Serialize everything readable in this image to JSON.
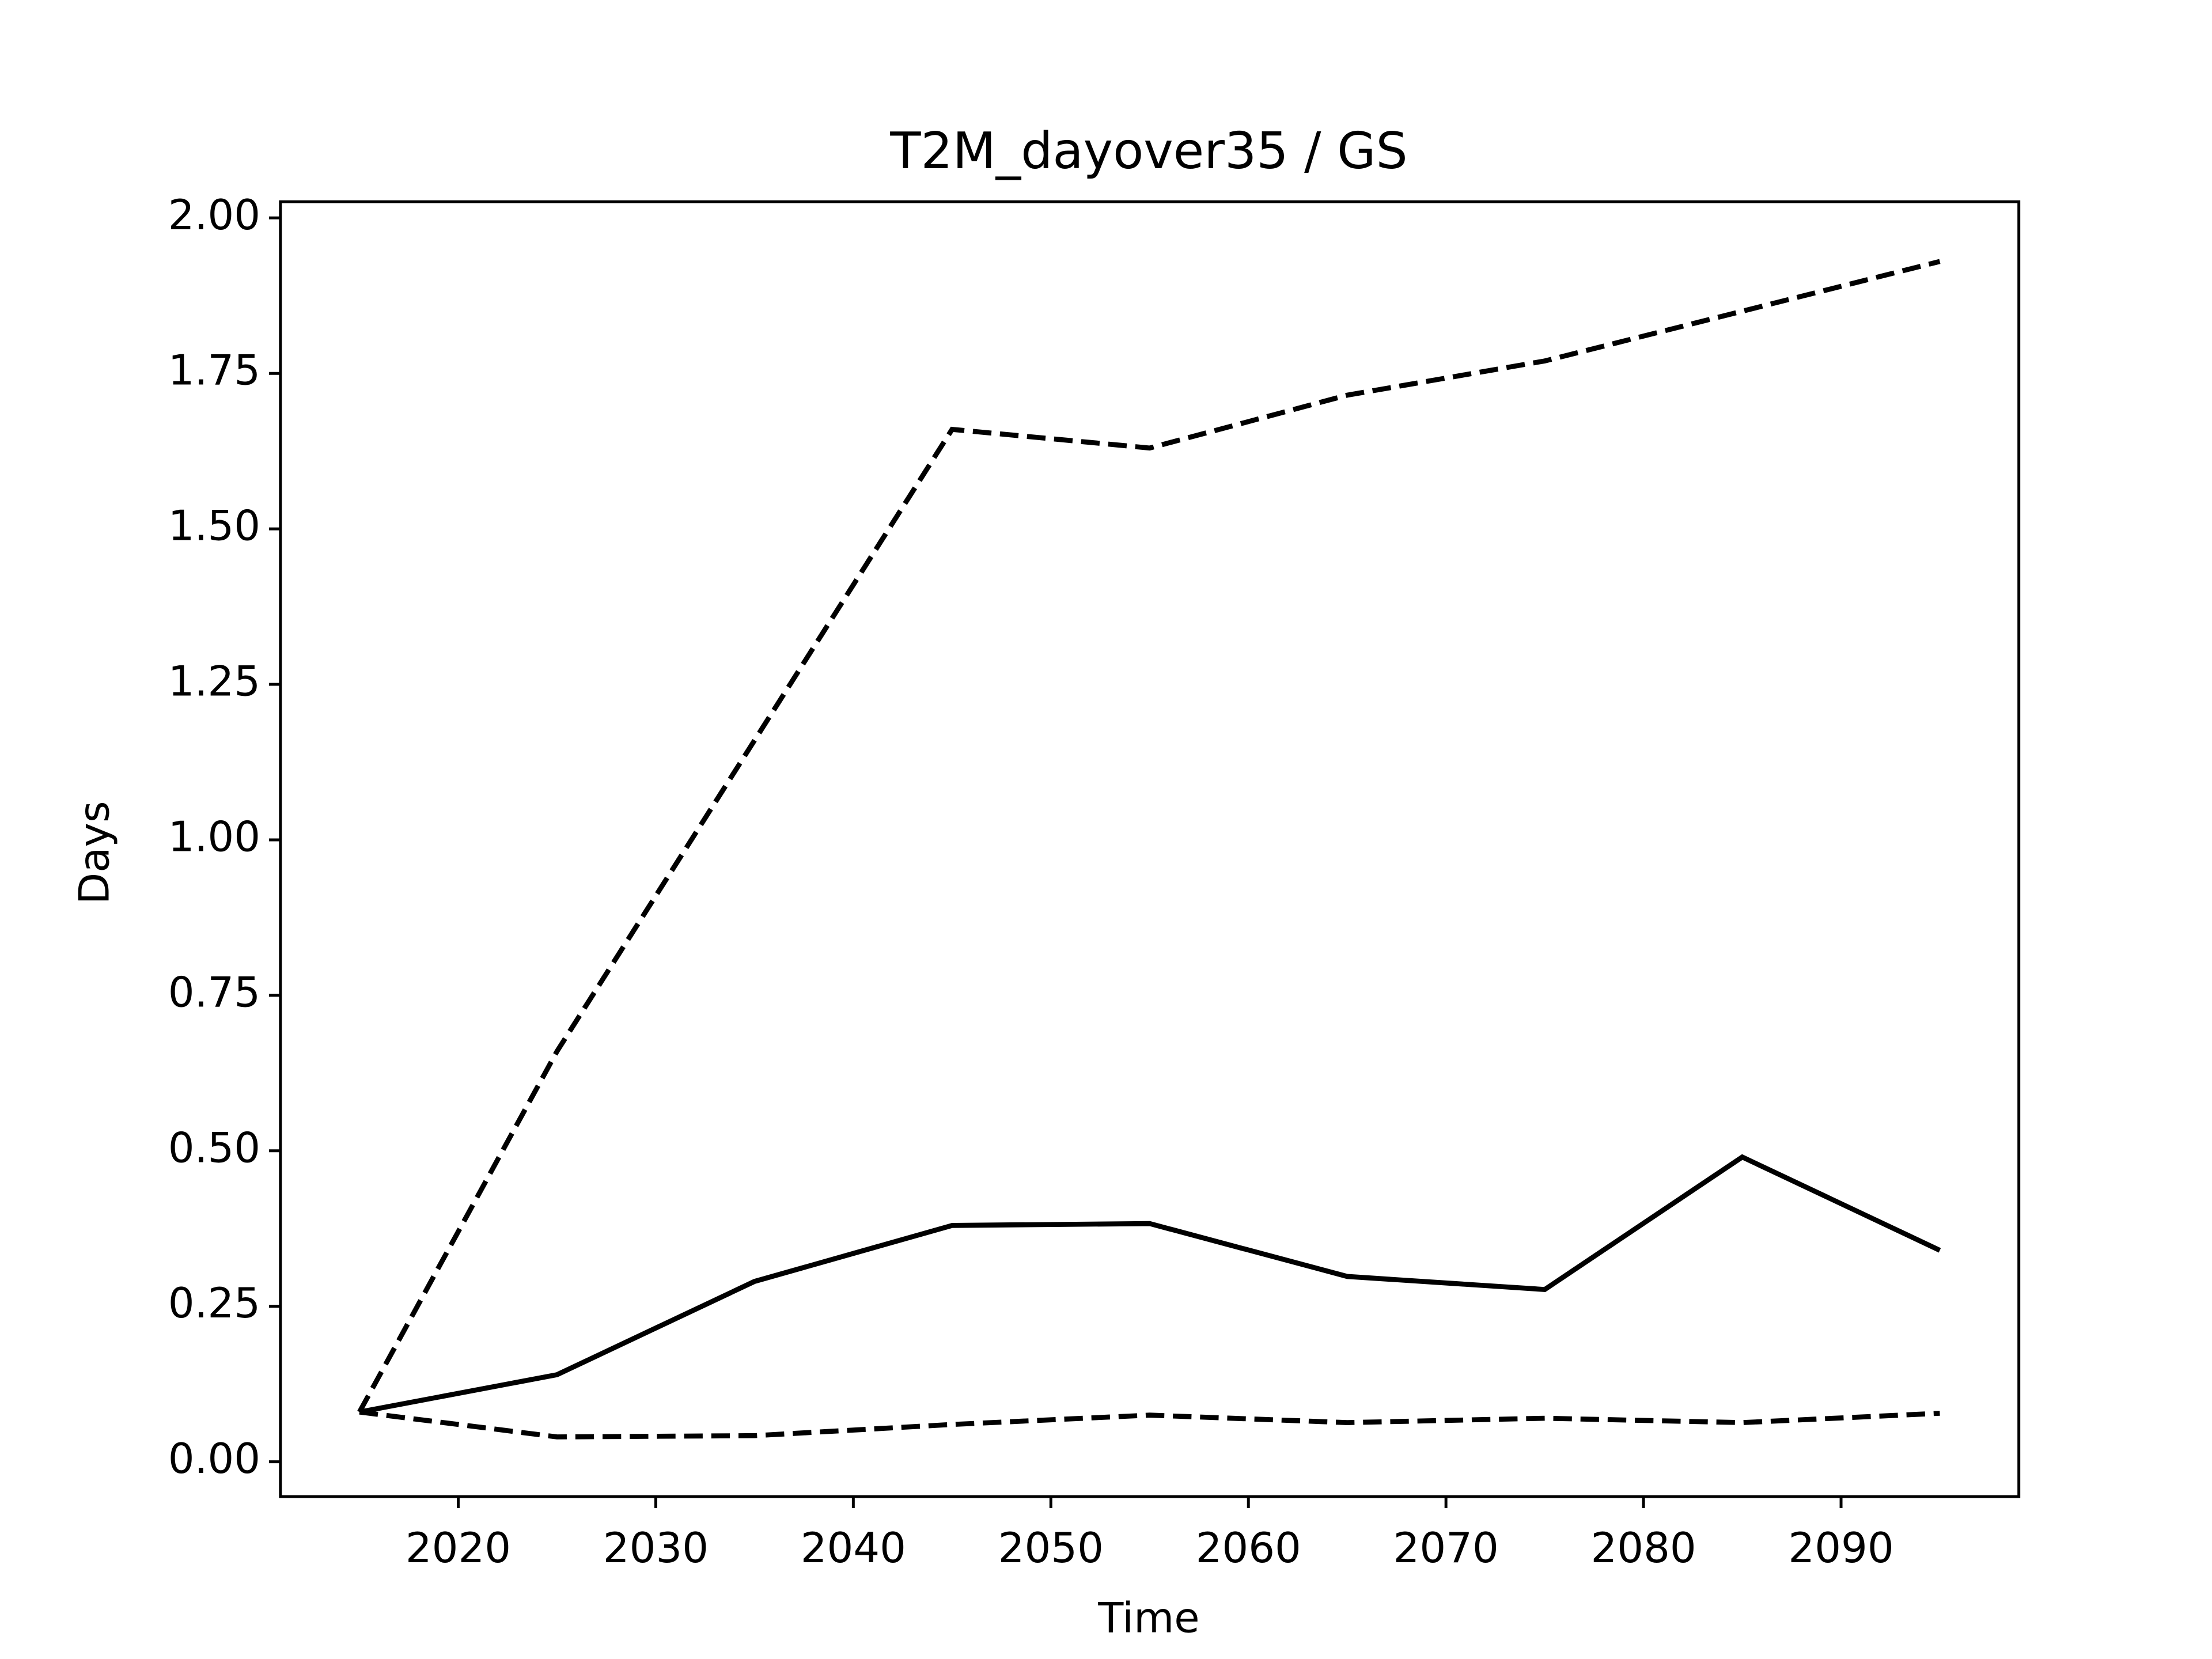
{
  "chart_data": {
    "type": "line",
    "title": "T2M_dayover35 / GS",
    "x_label": "Time",
    "y_label": "Days",
    "x": [
      2015,
      2025,
      2035,
      2045,
      2055,
      2065,
      2075,
      2085,
      2095
    ],
    "series": [
      {
        "color": "#000000",
        "linestyle": "solid",
        "values": [
          0.08,
          0.14,
          0.29,
          0.38,
          0.383,
          0.298,
          0.277,
          0.49,
          0.34
        ]
      },
      {
        "color": "#000000",
        "linestyle": "dashed",
        "values": [
          0.08,
          0.66,
          1.16,
          1.66,
          1.63,
          1.715,
          1.77,
          1.85,
          1.93
        ]
      },
      {
        "color": "#000000",
        "linestyle": "dashed",
        "values": [
          0.08,
          0.04,
          0.042,
          0.06,
          0.075,
          0.063,
          0.07,
          0.063,
          0.078
        ]
      }
    ],
    "xlim": [
      2011,
      2099
    ],
    "ylim": [
      -0.056,
      2.026
    ],
    "xticks": [
      2020,
      2030,
      2040,
      2050,
      2060,
      2070,
      2080,
      2090
    ],
    "yticks": [
      {
        "value": 0,
        "label": "0.00"
      },
      {
        "value": 0.25,
        "label": "0.25"
      },
      {
        "value": 0.5,
        "label": "0.50"
      },
      {
        "value": 0.75,
        "label": "0.75"
      },
      {
        "value": 1,
        "label": "1.00"
      },
      {
        "value": 1.25,
        "label": "1.25"
      },
      {
        "value": 1.5,
        "label": "1.50"
      },
      {
        "value": 1.75,
        "label": "1.75"
      },
      {
        "value": 2,
        "label": "2.00"
      }
    ],
    "grid": false
  }
}
